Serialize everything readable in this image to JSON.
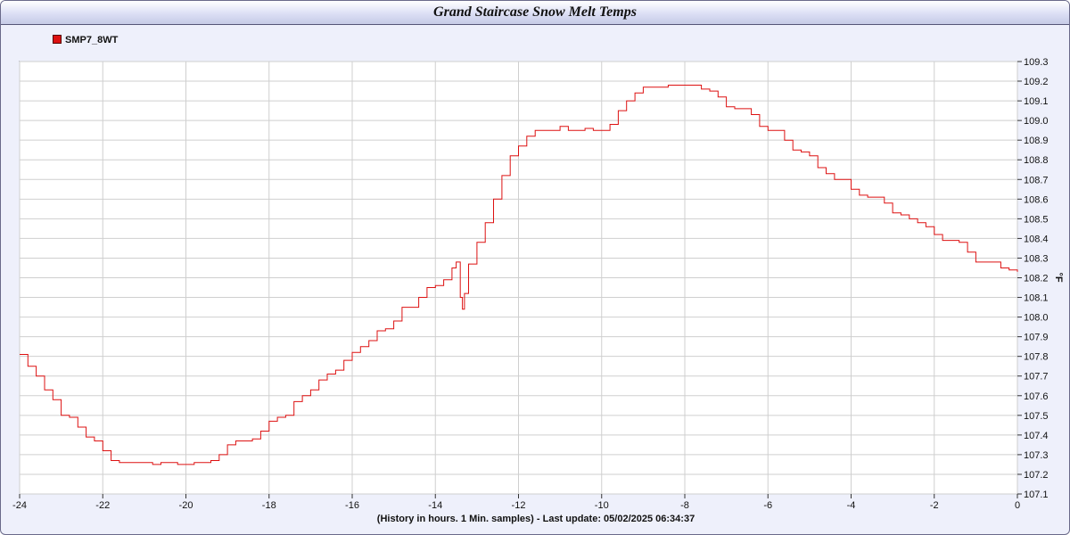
{
  "title": "Grand Staircase Snow Melt Temps",
  "footer_text": "(History in hours. 1 Min. samples) - Last update: 05/02/2025 06:34:37",
  "colors": {
    "series": "#dd1111",
    "grid": "#cfcfcf",
    "plot_bg": "#ffffff",
    "frame_bg": "#eef0fb"
  },
  "chart_data": {
    "type": "line",
    "title": "Grand Staircase Snow Melt Temps",
    "xlabel": "(History in hours. 1 Min. samples) - Last update: 05/02/2025 06:34:37",
    "ylabel": "°F",
    "xlim": [
      -24,
      0
    ],
    "ylim": [
      107.1,
      109.3
    ],
    "x_ticks": [
      "-24",
      "-22",
      "-20",
      "-18",
      "-16",
      "-14",
      "-12",
      "-10",
      "-8",
      "-6",
      "-4",
      "-2",
      "0"
    ],
    "y_ticks": [
      "109.3",
      "109.2",
      "109.1",
      "109.0",
      "108.9",
      "108.8",
      "108.7",
      "108.6",
      "108.5",
      "108.4",
      "108.3",
      "108.2",
      "108.1",
      "108.0",
      "107.9",
      "107.8",
      "107.7",
      "107.6",
      "107.5",
      "107.4",
      "107.3",
      "107.2",
      "107.1"
    ],
    "grid": true,
    "legend_position": "top-left",
    "series": [
      {
        "name": "SMP7_8WT",
        "color": "#dd1111",
        "x": [
          -24.0,
          -23.8,
          -23.6,
          -23.4,
          -23.2,
          -23.0,
          -22.8,
          -22.6,
          -22.4,
          -22.2,
          -22.0,
          -21.8,
          -21.6,
          -21.4,
          -21.2,
          -21.0,
          -20.8,
          -20.6,
          -20.4,
          -20.2,
          -20.0,
          -19.8,
          -19.6,
          -19.4,
          -19.2,
          -19.0,
          -18.8,
          -18.6,
          -18.4,
          -18.2,
          -18.0,
          -17.8,
          -17.6,
          -17.4,
          -17.2,
          -17.0,
          -16.8,
          -16.6,
          -16.4,
          -16.2,
          -16.0,
          -15.8,
          -15.6,
          -15.4,
          -15.2,
          -15.0,
          -14.8,
          -14.6,
          -14.4,
          -14.2,
          -14.0,
          -13.8,
          -13.6,
          -13.5,
          -13.4,
          -13.35,
          -13.3,
          -13.2,
          -13.0,
          -12.8,
          -12.6,
          -12.4,
          -12.2,
          -12.0,
          -11.8,
          -11.6,
          -11.4,
          -11.2,
          -11.0,
          -10.8,
          -10.6,
          -10.4,
          -10.2,
          -10.0,
          -9.8,
          -9.6,
          -9.4,
          -9.2,
          -9.0,
          -8.8,
          -8.6,
          -8.4,
          -8.2,
          -8.0,
          -7.8,
          -7.6,
          -7.4,
          -7.2,
          -7.0,
          -6.8,
          -6.6,
          -6.4,
          -6.2,
          -6.0,
          -5.8,
          -5.6,
          -5.4,
          -5.2,
          -5.0,
          -4.8,
          -4.6,
          -4.4,
          -4.2,
          -4.0,
          -3.8,
          -3.6,
          -3.4,
          -3.2,
          -3.0,
          -2.8,
          -2.6,
          -2.4,
          -2.2,
          -2.0,
          -1.8,
          -1.6,
          -1.4,
          -1.2,
          -1.0,
          -0.8,
          -0.6,
          -0.4,
          -0.2,
          0.0
        ],
        "y": [
          107.81,
          107.75,
          107.7,
          107.63,
          107.58,
          107.5,
          107.49,
          107.44,
          107.39,
          107.37,
          107.32,
          107.27,
          107.26,
          107.26,
          107.26,
          107.26,
          107.25,
          107.26,
          107.26,
          107.25,
          107.25,
          107.26,
          107.26,
          107.27,
          107.3,
          107.35,
          107.37,
          107.37,
          107.38,
          107.42,
          107.47,
          107.49,
          107.5,
          107.57,
          107.6,
          107.63,
          107.68,
          107.71,
          107.73,
          107.78,
          107.82,
          107.85,
          107.88,
          107.93,
          107.94,
          107.98,
          108.05,
          108.05,
          108.1,
          108.15,
          108.16,
          108.19,
          108.25,
          108.28,
          108.1,
          108.04,
          108.12,
          108.27,
          108.38,
          108.48,
          108.6,
          108.72,
          108.82,
          108.87,
          108.92,
          108.95,
          108.95,
          108.95,
          108.97,
          108.95,
          108.95,
          108.96,
          108.95,
          108.95,
          108.98,
          109.05,
          109.1,
          109.14,
          109.17,
          109.17,
          109.17,
          109.18,
          109.18,
          109.18,
          109.18,
          109.16,
          109.15,
          109.12,
          109.07,
          109.06,
          109.06,
          109.03,
          108.97,
          108.95,
          108.95,
          108.9,
          108.85,
          108.84,
          108.82,
          108.76,
          108.73,
          108.7,
          108.7,
          108.65,
          108.62,
          108.61,
          108.61,
          108.58,
          108.53,
          108.52,
          108.5,
          108.48,
          108.46,
          108.42,
          108.39,
          108.39,
          108.38,
          108.33,
          108.28,
          108.28,
          108.28,
          108.25,
          108.24,
          108.23
        ]
      }
    ]
  }
}
